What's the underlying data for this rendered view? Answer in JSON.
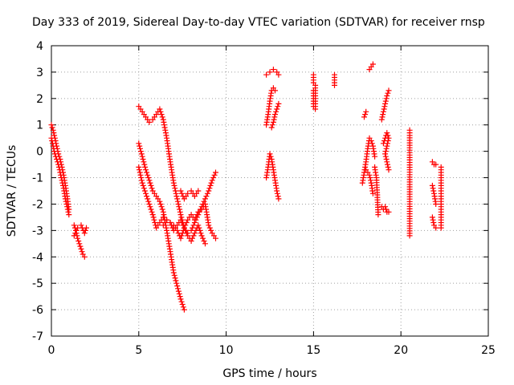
{
  "chart_data": {
    "type": "scatter",
    "title": "Day 333 of 2019, Sidereal Day-to-day VTEC variation (SDTVAR) for receiver rnsp",
    "xlabel": "GPS time / hours",
    "ylabel": "SDTVAR / TECUs",
    "xlim": [
      0,
      25
    ],
    "ylim": [
      -7,
      4
    ],
    "x_ticks": [
      0,
      5,
      10,
      15,
      20,
      25
    ],
    "y_ticks": [
      -7,
      -6,
      -5,
      -4,
      -3,
      -2,
      -1,
      0,
      1,
      2,
      3,
      4
    ],
    "x_tick_labels": [
      "0",
      "5",
      "10",
      "15",
      "20",
      "25"
    ],
    "y_tick_labels": [
      "-7",
      "-6",
      "-5",
      "-4",
      "-3",
      "-2",
      "-1",
      "0",
      "1",
      "2",
      "3",
      "4"
    ],
    "grid": true,
    "marker": "plus",
    "color": "#ff0000",
    "series": [
      {
        "name": "SDTVAR",
        "segments": [
          [
            [
              0.0,
              1.0
            ],
            [
              0.1,
              0.8
            ],
            [
              0.2,
              0.5
            ],
            [
              0.3,
              0.2
            ],
            [
              0.4,
              -0.1
            ],
            [
              0.5,
              -0.3
            ],
            [
              0.6,
              -0.6
            ],
            [
              0.7,
              -0.9
            ],
            [
              0.8,
              -1.3
            ],
            [
              0.9,
              -1.7
            ],
            [
              1.0,
              -2.2
            ]
          ],
          [
            [
              0.0,
              0.5
            ],
            [
              0.1,
              0.2
            ],
            [
              0.2,
              -0.1
            ],
            [
              0.3,
              -0.3
            ],
            [
              0.4,
              -0.5
            ],
            [
              0.5,
              -0.8
            ],
            [
              0.6,
              -1.1
            ],
            [
              0.7,
              -1.4
            ],
            [
              0.8,
              -1.8
            ],
            [
              0.9,
              -2.1
            ],
            [
              1.0,
              -2.4
            ]
          ],
          [
            [
              1.3,
              -2.8
            ],
            [
              1.4,
              -3.0
            ],
            [
              1.5,
              -3.3
            ],
            [
              1.6,
              -3.5
            ],
            [
              1.7,
              -3.7
            ],
            [
              1.8,
              -3.9
            ],
            [
              1.9,
              -4.0
            ]
          ],
          [
            [
              1.3,
              -3.2
            ],
            [
              1.5,
              -2.9
            ],
            [
              1.7,
              -2.8
            ],
            [
              1.9,
              -3.1
            ],
            [
              2.0,
              -2.9
            ]
          ],
          [
            [
              5.0,
              1.7
            ],
            [
              5.2,
              1.5
            ],
            [
              5.4,
              1.3
            ],
            [
              5.6,
              1.1
            ],
            [
              5.8,
              1.2
            ],
            [
              6.0,
              1.4
            ],
            [
              6.2,
              1.6
            ],
            [
              6.4,
              1.2
            ],
            [
              6.6,
              0.5
            ],
            [
              6.8,
              -0.4
            ],
            [
              7.0,
              -1.2
            ],
            [
              7.2,
              -1.8
            ],
            [
              7.4,
              -2.4
            ],
            [
              7.6,
              -2.9
            ],
            [
              7.8,
              -3.1
            ],
            [
              8.0,
              -3.0
            ],
            [
              8.2,
              -2.7
            ],
            [
              8.4,
              -2.4
            ],
            [
              8.6,
              -2.1
            ],
            [
              8.8,
              -1.8
            ],
            [
              9.0,
              -1.5
            ],
            [
              9.2,
              -1.1
            ],
            [
              9.4,
              -0.8
            ]
          ],
          [
            [
              5.0,
              0.3
            ],
            [
              5.2,
              -0.2
            ],
            [
              5.4,
              -0.7
            ],
            [
              5.6,
              -1.1
            ],
            [
              5.8,
              -1.5
            ],
            [
              6.0,
              -1.7
            ],
            [
              6.2,
              -1.9
            ],
            [
              6.4,
              -2.3
            ],
            [
              6.6,
              -3.0
            ],
            [
              6.8,
              -3.8
            ],
            [
              7.0,
              -4.6
            ],
            [
              7.2,
              -5.1
            ],
            [
              7.4,
              -5.6
            ],
            [
              7.6,
              -6.0
            ]
          ],
          [
            [
              5.0,
              -0.6
            ],
            [
              5.2,
              -1.2
            ],
            [
              5.4,
              -1.6
            ],
            [
              5.6,
              -2.0
            ],
            [
              5.8,
              -2.4
            ],
            [
              6.0,
              -2.9
            ],
            [
              6.2,
              -2.7
            ],
            [
              6.4,
              -2.5
            ],
            [
              6.6,
              -2.6
            ],
            [
              6.8,
              -2.7
            ],
            [
              7.0,
              -2.8
            ],
            [
              7.2,
              -3.0
            ],
            [
              7.4,
              -3.3
            ],
            [
              7.6,
              -2.9
            ],
            [
              7.8,
              -2.6
            ],
            [
              8.0,
              -2.4
            ],
            [
              8.2,
              -2.6
            ],
            [
              8.4,
              -2.3
            ],
            [
              8.6,
              -2.2
            ],
            [
              8.8,
              -2.0
            ],
            [
              9.0,
              -2.8
            ],
            [
              9.2,
              -3.1
            ],
            [
              9.4,
              -3.3
            ]
          ],
          [
            [
              6.4,
              -2.8
            ],
            [
              6.6,
              -2.6
            ],
            [
              6.8,
              -2.7
            ],
            [
              7.0,
              -3.0
            ],
            [
              7.2,
              -2.8
            ],
            [
              7.4,
              -2.6
            ],
            [
              7.6,
              -2.9
            ],
            [
              7.8,
              -3.2
            ],
            [
              8.0,
              -3.4
            ],
            [
              8.2,
              -3.1
            ],
            [
              8.4,
              -2.8
            ],
            [
              8.6,
              -3.2
            ],
            [
              8.8,
              -3.5
            ]
          ],
          [
            [
              7.4,
              -1.5
            ],
            [
              7.6,
              -1.8
            ],
            [
              7.8,
              -1.6
            ],
            [
              8.0,
              -1.5
            ],
            [
              8.2,
              -1.7
            ],
            [
              8.4,
              -1.5
            ]
          ],
          [
            [
              12.3,
              -1.0
            ],
            [
              12.4,
              -0.6
            ],
            [
              12.5,
              -0.1
            ],
            [
              12.6,
              -0.3
            ],
            [
              12.7,
              -0.7
            ],
            [
              12.8,
              -1.1
            ],
            [
              12.9,
              -1.5
            ],
            [
              13.0,
              -1.8
            ]
          ],
          [
            [
              12.3,
              1.0
            ],
            [
              12.4,
              1.4
            ],
            [
              12.5,
              1.9
            ],
            [
              12.6,
              2.3
            ],
            [
              12.7,
              2.4
            ],
            [
              12.8,
              2.3
            ]
          ],
          [
            [
              12.3,
              2.9
            ],
            [
              12.5,
              3.0
            ],
            [
              12.7,
              3.1
            ],
            [
              12.9,
              3.0
            ],
            [
              13.0,
              2.9
            ]
          ],
          [
            [
              12.6,
              0.9
            ],
            [
              12.7,
              1.1
            ],
            [
              12.8,
              1.4
            ],
            [
              12.9,
              1.6
            ],
            [
              13.0,
              1.8
            ]
          ],
          [
            [
              15.0,
              2.9
            ],
            [
              15.0,
              2.6
            ],
            [
              15.1,
              2.5
            ],
            [
              15.1,
              2.2
            ],
            [
              15.1,
              1.9
            ],
            [
              15.1,
              1.6
            ],
            [
              15.0,
              1.7
            ],
            [
              15.0,
              2.0
            ],
            [
              15.0,
              2.3
            ]
          ],
          [
            [
              16.2,
              2.9
            ],
            [
              16.2,
              2.5
            ]
          ],
          [
            [
              17.8,
              -1.2
            ],
            [
              17.9,
              -0.8
            ],
            [
              18.0,
              -0.4
            ],
            [
              18.1,
              0.1
            ],
            [
              18.2,
              0.5
            ],
            [
              18.3,
              0.4
            ],
            [
              18.4,
              0.2
            ],
            [
              18.5,
              -0.2
            ]
          ],
          [
            [
              17.9,
              1.3
            ],
            [
              18.0,
              1.5
            ]
          ],
          [
            [
              18.0,
              -0.7
            ],
            [
              18.2,
              -0.9
            ],
            [
              18.3,
              -1.2
            ],
            [
              18.4,
              -1.6
            ]
          ],
          [
            [
              18.2,
              3.1
            ],
            [
              18.3,
              3.2
            ],
            [
              18.4,
              3.3
            ]
          ],
          [
            [
              18.5,
              -0.6
            ],
            [
              18.6,
              -1.0
            ],
            [
              18.7,
              -2.4
            ]
          ],
          [
            [
              19.0,
              0.3
            ],
            [
              19.1,
              0.5
            ],
            [
              19.2,
              0.7
            ],
            [
              19.3,
              0.5
            ],
            [
              19.1,
              -0.1
            ],
            [
              19.2,
              -0.4
            ],
            [
              19.3,
              -0.7
            ]
          ],
          [
            [
              18.9,
              1.2
            ],
            [
              19.0,
              1.5
            ],
            [
              19.1,
              1.8
            ],
            [
              19.2,
              2.1
            ],
            [
              19.3,
              2.3
            ]
          ],
          [
            [
              18.9,
              -2.1
            ],
            [
              19.0,
              -2.2
            ],
            [
              19.1,
              -2.1
            ],
            [
              19.2,
              -2.3
            ],
            [
              19.3,
              -2.3
            ]
          ],
          [
            [
              20.5,
              0.8
            ],
            [
              20.5,
              0.6
            ],
            [
              20.5,
              -0.7
            ],
            [
              20.5,
              -3.2
            ]
          ],
          [
            [
              21.8,
              -0.4
            ],
            [
              21.9,
              -0.5
            ],
            [
              22.0,
              -0.5
            ]
          ],
          [
            [
              21.8,
              -1.3
            ],
            [
              21.9,
              -1.6
            ],
            [
              22.0,
              -2.0
            ]
          ],
          [
            [
              21.8,
              -2.5
            ],
            [
              21.9,
              -2.8
            ],
            [
              22.0,
              -2.9
            ]
          ],
          [
            [
              22.3,
              -0.6
            ],
            [
              22.3,
              -1.0
            ],
            [
              22.3,
              -1.8
            ],
            [
              22.3,
              -2.7
            ],
            [
              22.3,
              -2.9
            ]
          ]
        ]
      }
    ]
  }
}
